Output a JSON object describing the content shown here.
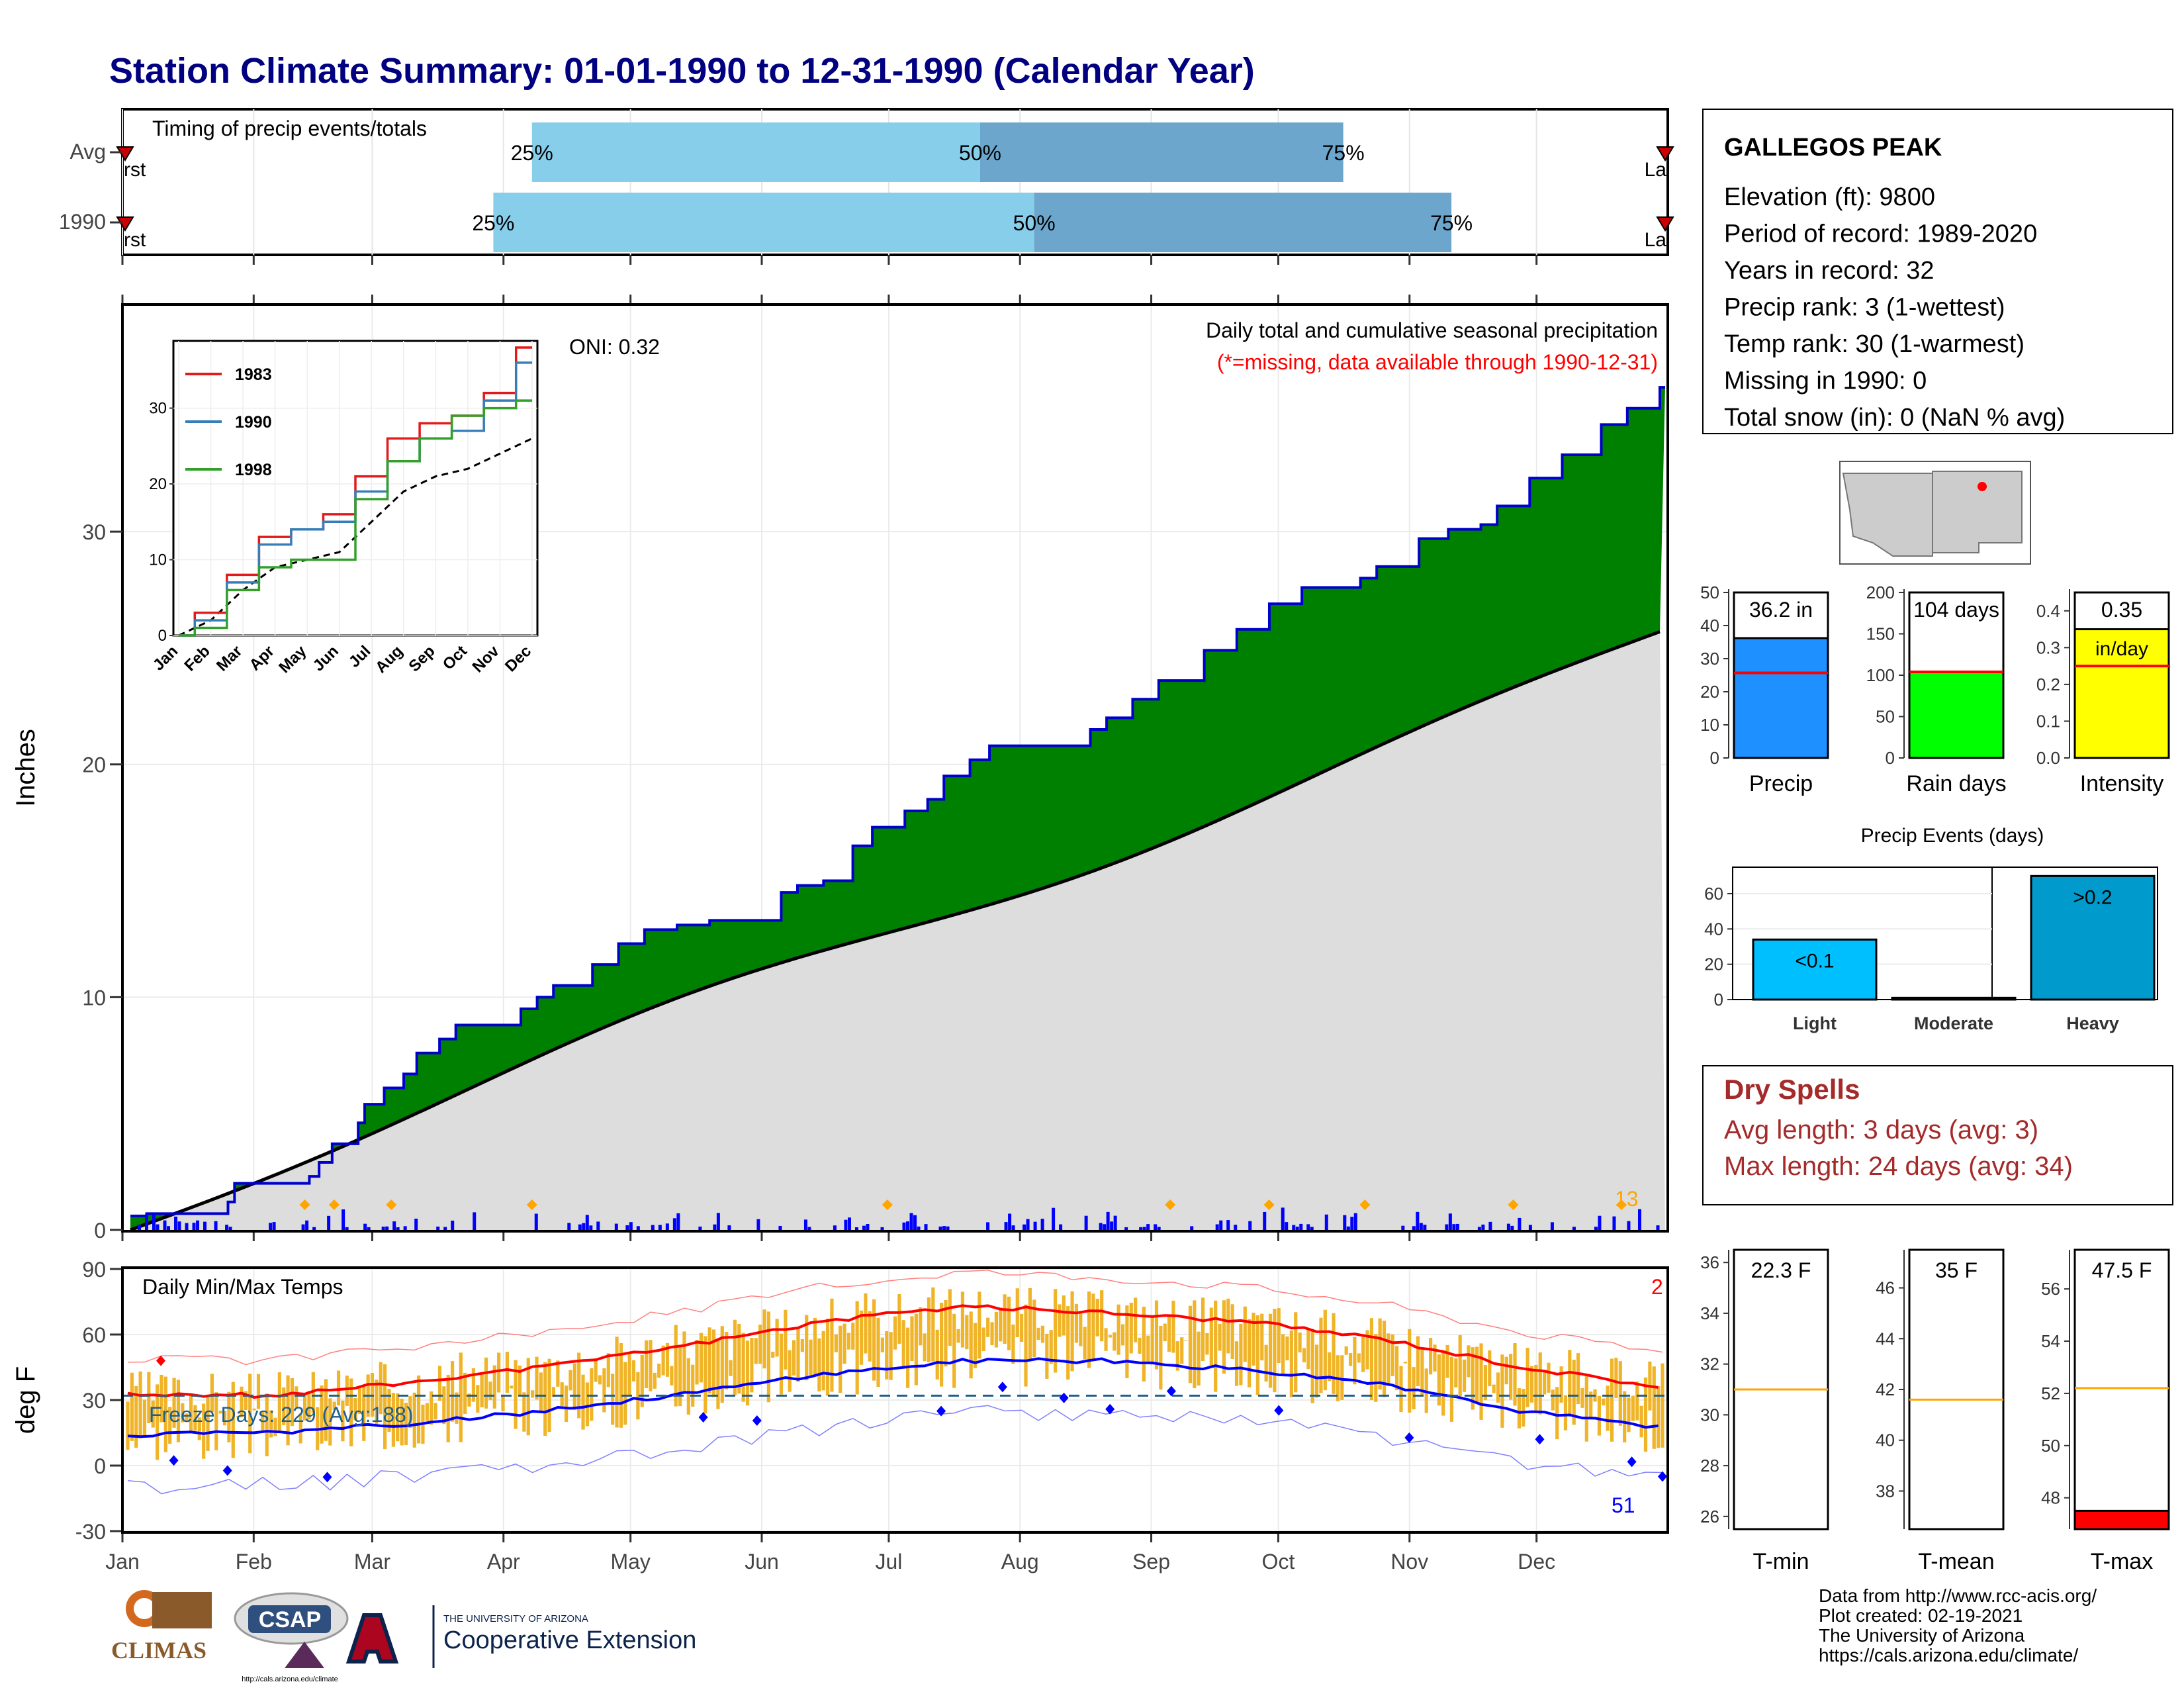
{
  "title": "Station Climate Summary: 01-01-1990 to 12-31-1990 (Calendar Year)",
  "timing": {
    "label": "Timing of precip events/totals",
    "rows": [
      {
        "name": "Avg",
        "first_label": "First",
        "last_label": "Last",
        "q25": 0.265,
        "q50": 0.555,
        "q75": 0.79,
        "first": 0.0,
        "last": 1.0,
        "q25_label": "25%",
        "q50_label": "50%",
        "q75_label": "75%"
      },
      {
        "name": "1990",
        "first_label": "First",
        "last_label": "Last",
        "q25": 0.24,
        "q50": 0.59,
        "q75": 0.86,
        "first": 0.0,
        "last": 1.0,
        "q25_label": "25%",
        "q50_label": "50%",
        "q75_label": "75%"
      }
    ],
    "colors": {
      "light": "#87CEEB",
      "dark": "#6CA6CD",
      "marker": "#CC0000"
    }
  },
  "precip_main": {
    "title": "Daily total and cumulative seasonal precipitation",
    "missing_note": "(*=missing, data available through 1990-12-31)",
    "oni_label": "ONI: 0.32",
    "ylabel": "Inches",
    "annotation_count": "13",
    "colors": {
      "surplus": "#008000",
      "normal": "#DDDDDD",
      "line": "#0000CC",
      "bars": "#0000FF",
      "marker": "#FFA500"
    }
  },
  "inset": {
    "series": [
      {
        "name": "1983",
        "color": "#E31A1C"
      },
      {
        "name": "1990",
        "color": "#377EB8"
      },
      {
        "name": "1998",
        "color": "#33A02C"
      }
    ],
    "months": [
      "Jan",
      "Feb",
      "Mar",
      "Apr",
      "May",
      "Jun",
      "Jul",
      "Aug",
      "Sep",
      "Oct",
      "Nov",
      "Dec"
    ]
  },
  "station": {
    "name": "GALLEGOS PEAK",
    "lines": [
      "Elevation (ft): 9800",
      "Period of record: 1989-2020",
      "Years in record: 32",
      "Precip rank: 3 (1-wettest)",
      "Temp rank: 30 (1-warmest)",
      "Missing in 1990: 0",
      "Total snow (in): 0 (NaN % avg)"
    ]
  },
  "small_bars": [
    {
      "label": "Precip",
      "value_label": "36.2 in",
      "ticks": [
        "0",
        "10",
        "20",
        "30",
        "40",
        "50"
      ],
      "ymax": 50,
      "value": 36.2,
      "avg": 25.7,
      "color": "#1E90FF"
    },
    {
      "label": "Rain days",
      "value_label": "104 days",
      "ticks": [
        "0",
        "50",
        "100",
        "150",
        "200"
      ],
      "ymax": 200,
      "value": 104,
      "avg": 104,
      "color": "#00FF00"
    },
    {
      "label": "Intensity",
      "value_label": "0.35",
      "value_label2": "in/day",
      "ticks": [
        "0.0",
        "0.1",
        "0.2",
        "0.3",
        "0.4"
      ],
      "ymax": 0.45,
      "value": 0.35,
      "avg": 0.25,
      "color": "#FFFF00"
    }
  ],
  "events": {
    "title": "Precip Events (days)",
    "categories": [
      "Light",
      "Moderate",
      "Heavy"
    ],
    "bar_labels": [
      "<0.1",
      "",
      ">0.2"
    ],
    "values": [
      34,
      1,
      70
    ],
    "ticks": [
      "0",
      "20",
      "40",
      "60"
    ],
    "color": "#00BFFF",
    "heavy_color": "#009ACD"
  },
  "dry_spells": {
    "title": "Dry Spells",
    "avg": "Avg length: 3 days (avg: 3)",
    "max": "Max length: 24 days (avg: 34)"
  },
  "temps": {
    "label": "Daily Min/Max Temps",
    "freeze": "Freeze Days: 229 (Avg:188)",
    "ylabel": "deg F",
    "yticks": [
      "-30",
      "0",
      "30",
      "60",
      "90"
    ],
    "record_hi_count": "2",
    "record_lo_count": "51",
    "months": [
      "Jan",
      "Feb",
      "Mar",
      "Apr",
      "May",
      "Jun",
      "Jul",
      "Aug",
      "Sep",
      "Oct",
      "Nov",
      "Dec"
    ],
    "colors": {
      "bars": "#F0B429",
      "max": "#FF0000",
      "min": "#0000FF",
      "freeze": "#1F5F8B"
    }
  },
  "temp_boxes": [
    {
      "label": "T-min",
      "value_label": "22.3 F",
      "ticks": [
        "26",
        "28",
        "30",
        "32",
        "34",
        "36"
      ],
      "ymin": 25.5,
      "ymax": 36.5,
      "avg": 31.0,
      "value": 22.3
    },
    {
      "label": "T-mean",
      "value_label": "35 F",
      "ticks": [
        "38",
        "40",
        "42",
        "44",
        "46"
      ],
      "ymin": 36.5,
      "ymax": 47.5,
      "avg": 41.6,
      "value": 35
    },
    {
      "label": "T-max",
      "value_label": "47.5 F",
      "ticks": [
        "48",
        "50",
        "52",
        "54",
        "56"
      ],
      "ymin": 46.8,
      "ymax": 57.5,
      "avg": 52.2,
      "value": 47.5
    }
  ],
  "footer": [
    "Data from http://www.rcc-acis.org/",
    "Plot created: 02-19-2021",
    "The University of Arizona",
    "https://cals.arizona.edu/climate/"
  ],
  "logos": {
    "climas": "CLIMAS",
    "csap": "CSAP",
    "csap_url": "http://cals.arizona.edu/climate",
    "ua_small": "THE UNIVERSITY OF ARIZONA",
    "ua_big": "Cooperative Extension"
  },
  "chart_data": [
    {
      "type": "area",
      "title": "Daily total and cumulative seasonal precipitation",
      "ylabel": "Inches",
      "ylim": [
        0,
        36
      ],
      "cumulative_1990_by_day": [
        [
          0,
          0.6
        ],
        [
          5,
          0.7
        ],
        [
          30,
          1.2
        ],
        [
          32,
          2.0
        ],
        [
          55,
          2.3
        ],
        [
          58,
          2.9
        ],
        [
          62,
          3.7
        ],
        [
          70,
          4.6
        ],
        [
          72,
          5.4
        ],
        [
          78,
          6.1
        ],
        [
          84,
          6.7
        ],
        [
          88,
          7.6
        ],
        [
          95,
          8.2
        ],
        [
          100,
          8.8
        ],
        [
          120,
          9.5
        ],
        [
          125,
          10.0
        ],
        [
          130,
          10.5
        ],
        [
          142,
          11.4
        ],
        [
          150,
          12.3
        ],
        [
          158,
          12.9
        ],
        [
          168,
          13.1
        ],
        [
          178,
          13.3
        ],
        [
          200,
          14.5
        ],
        [
          205,
          14.8
        ],
        [
          213,
          15.0
        ],
        [
          222,
          16.5
        ],
        [
          228,
          17.3
        ],
        [
          238,
          18.0
        ],
        [
          245,
          18.5
        ],
        [
          250,
          19.5
        ],
        [
          258,
          20.2
        ],
        [
          264,
          20.8
        ],
        [
          295,
          21.5
        ],
        [
          300,
          22.0
        ],
        [
          308,
          22.8
        ],
        [
          316,
          23.6
        ],
        [
          330,
          24.9
        ],
        [
          340,
          25.8
        ],
        [
          350,
          26.9
        ],
        [
          360,
          27.6
        ],
        [
          378,
          28.0
        ],
        [
          383,
          28.5
        ],
        [
          396,
          29.7
        ],
        [
          405,
          30.1
        ],
        [
          415,
          30.3
        ],
        [
          420,
          31.1
        ],
        [
          430,
          32.3
        ],
        [
          440,
          33.3
        ],
        [
          452,
          34.6
        ],
        [
          460,
          35.3
        ],
        [
          470,
          36.2
        ]
      ],
      "normal_total": 25.7,
      "wet_day_markers": [
        "Feb 16",
        "Feb 24",
        "Mar 5",
        "Apr 9",
        "Jul 1",
        "Sep 4",
        "Sep 23",
        "Oct 21",
        "Nov 23",
        "Dec 26"
      ]
    },
    {
      "type": "line",
      "title": "",
      "x": [
        "Jan",
        "Feb",
        "Mar",
        "Apr",
        "May",
        "Jun",
        "Jul",
        "Aug",
        "Sep",
        "Oct",
        "Nov",
        "Dec"
      ],
      "series": [
        {
          "name": "1983",
          "values": [
            0,
            3,
            8,
            13,
            14,
            16,
            21,
            26,
            28,
            29,
            32,
            38
          ]
        },
        {
          "name": "1990",
          "values": [
            0,
            2,
            7,
            12,
            14,
            15,
            19,
            23,
            26,
            27,
            31,
            36
          ]
        },
        {
          "name": "1998",
          "values": [
            0,
            1,
            6,
            9,
            10,
            10,
            18,
            23,
            26,
            29,
            30,
            31
          ]
        }
      ],
      "avg_values": [
        0,
        2,
        6,
        9,
        10,
        11,
        15,
        19,
        21,
        22,
        24,
        26
      ],
      "ylim": [
        0,
        38
      ]
    },
    {
      "type": "bar",
      "title": "Daily Min/Max Temps",
      "ylabel": "deg F",
      "ylim": [
        -30,
        90
      ],
      "x": [
        "Jan",
        "Feb",
        "Mar",
        "Apr",
        "May",
        "Jun",
        "Jul",
        "Aug",
        "Sep",
        "Oct",
        "Nov",
        "Dec"
      ],
      "series": [
        {
          "name": "avg max",
          "values": [
            33,
            32,
            38,
            45,
            55,
            66,
            73,
            70,
            66,
            58,
            45,
            36
          ]
        },
        {
          "name": "avg min",
          "values": [
            14,
            15,
            19,
            25,
            33,
            42,
            48,
            48,
            44,
            37,
            25,
            17
          ]
        }
      ],
      "freeze_line": 32
    }
  ]
}
